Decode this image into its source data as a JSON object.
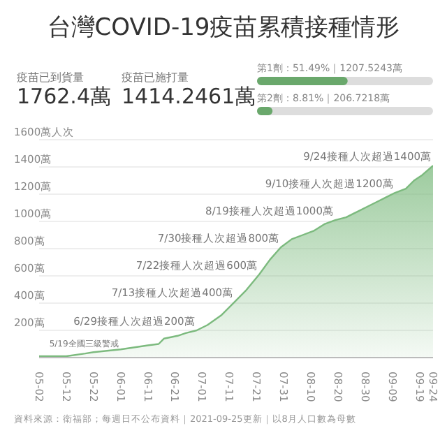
{
  "chart_data": [
    {
      "type": "other",
      "title": "台灣COVID-19疫苗累積接種情形",
      "annotations": [
        "疫苗已到貨量",
        "1762.4萬",
        "疫苗已施打量",
        "1414.2461萬"
      ]
    },
    {
      "type": "bar",
      "orientation": "horizontal",
      "categories": [
        null,
        null
      ],
      "values": [
        51.49,
        8.81
      ],
      "value_labels": [
        "第1劑：51.49%｜1207.5243萬",
        "第2劑：8.81%｜206.7218萬"
      ],
      "color": "#6aa86c",
      "xlim": [
        0,
        100
      ],
      "tick_labels": false
    },
    {
      "type": "area",
      "x": [
        "2021-05-02",
        "2021-05-12",
        "2021-05-19",
        "2021-05-22",
        "2021-06-01",
        "2021-06-11",
        "2021-06-15",
        "2021-06-17",
        "2021-06-22",
        "2021-06-25",
        "2021-06-29",
        "2021-07-03",
        "2021-07-08",
        "2021-07-13",
        "2021-07-17",
        "2021-07-22",
        "2021-07-26",
        "2021-07-30",
        "2021-08-03",
        "2021-08-07",
        "2021-08-11",
        "2021-08-15",
        "2021-08-19",
        "2021-08-23",
        "2021-08-27",
        "2021-08-31",
        "2021-09-04",
        "2021-09-07",
        "2021-09-10",
        "2021-09-14",
        "2021-09-17",
        "2021-09-20",
        "2021-09-24"
      ],
      "series": [
        {
          "color": "#7cba7e",
          "values": [
            10,
            10,
            30,
            40,
            60,
            90,
            100,
            140,
            160,
            180,
            200,
            240,
            310,
            410,
            490,
            610,
            720,
            810,
            870,
            900,
            930,
            980,
            1010,
            1030,
            1070,
            1110,
            1150,
            1180,
            1210,
            1240,
            1300,
            1340,
            1410
          ]
        }
      ],
      "xlim": [
        "2021-05-02",
        "2021-09-24"
      ],
      "xticks": [
        {
          "value": "2021-05-02",
          "label": "05-02"
        },
        {
          "value": "2021-05-12",
          "label": "05-12"
        },
        {
          "value": "2021-05-22",
          "label": "05-22"
        },
        {
          "value": "2021-06-01",
          "label": "06-01"
        },
        {
          "value": "2021-06-11",
          "label": "06-11"
        },
        {
          "value": "2021-06-21",
          "label": "06-21"
        },
        {
          "value": "2021-07-01",
          "label": "07-01"
        },
        {
          "value": "2021-07-11",
          "label": "07-11"
        },
        {
          "value": "2021-07-21",
          "label": "07-21"
        },
        {
          "value": "2021-07-31",
          "label": "07-31"
        },
        {
          "value": "2021-08-10",
          "label": "08-10"
        },
        {
          "value": "2021-08-20",
          "label": "08-20"
        },
        {
          "value": "2021-08-30",
          "label": "08-30"
        },
        {
          "value": "2021-09-09",
          "label": "09-09"
        },
        {
          "value": "2021-09-19",
          "label": "09-19"
        },
        {
          "value": "2021-09-24",
          "label": "09-24"
        }
      ],
      "ylim": [
        0,
        1600
      ],
      "yticks": [
        {
          "value": 200,
          "label": "200萬"
        },
        {
          "value": 400,
          "label": "400萬"
        },
        {
          "value": 600,
          "label": "600萬"
        },
        {
          "value": 800,
          "label": "800萬"
        },
        {
          "value": 1000,
          "label": "1000萬"
        },
        {
          "value": 1200,
          "label": "1200萬"
        },
        {
          "value": 1400,
          "label": "1400萬"
        },
        {
          "value": 1600,
          "label": "1600萬人次"
        }
      ],
      "grid": "y",
      "marker": "none",
      "annotations": [
        {
          "text": "5/19全國三級警戒",
          "x": "2021-05-19",
          "y": 30
        },
        {
          "text": "6/29接種人次超過200萬",
          "x": "2021-06-29",
          "y": 200
        },
        {
          "text": "7/13接種人次超過400萬",
          "x": "2021-07-13",
          "y": 410
        },
        {
          "text": "7/22接種人次超過600萬",
          "x": "2021-07-22",
          "y": 610
        },
        {
          "text": "7/30接種人次超過800萬",
          "x": "2021-07-30",
          "y": 810
        },
        {
          "text": "8/19接種人次超過1000萬",
          "x": "2021-08-19",
          "y": 1010
        },
        {
          "text": "9/10接種人次超過1200萬",
          "x": "2021-09-10",
          "y": 1210
        },
        {
          "text": "9/24接種人次超過1400萬",
          "x": "2021-09-24",
          "y": 1410
        },
        "資料來源：衛福部；每週日不公布資料｜2021-09-25更新｜以8月人口數為母數"
      ]
    }
  ]
}
